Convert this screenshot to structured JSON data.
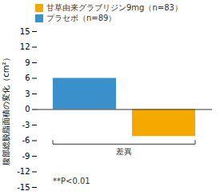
{
  "chart_data": {
    "type": "bar",
    "categories": [
      null,
      null
    ],
    "series": [
      {
        "name": "甘草由来グラブリジン9mg（n=83）",
        "color": "#F5A800",
        "values": [
          null,
          -5.2
        ]
      },
      {
        "name": "プラセボ（n=89）",
        "color": "#3A90CA",
        "values": [
          6.0,
          null
        ]
      }
    ],
    "ylabel": "腹部総脱脂面積の変化（cm²）",
    "annotations": [
      "差異",
      "**P<0.01"
    ],
    "ylim": [
      -15,
      15
    ],
    "yticks": [
      -15,
      -12,
      -9,
      -6,
      -3,
      0,
      3,
      6,
      9,
      12,
      15
    ],
    "grid": false,
    "legend": "top",
    "tick_labels": "y"
  }
}
